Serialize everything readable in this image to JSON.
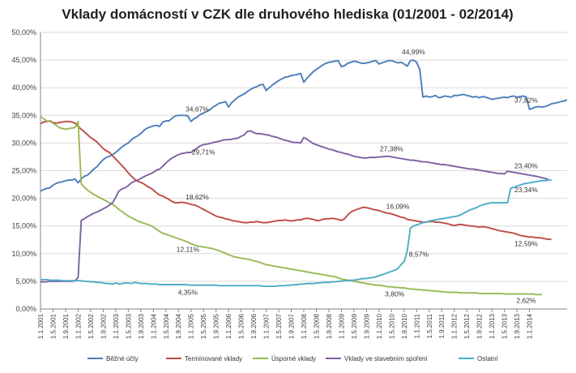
{
  "chart_data": {
    "type": "line",
    "title": "Vklady domácností v CZK dle druhového hlediska (01/2001 - 02/2014)",
    "ylim": [
      0,
      50
    ],
    "ytick_labels": [
      "0,00%",
      "5,00%",
      "10,00%",
      "15,00%",
      "20,00%",
      "25,00%",
      "30,00%",
      "35,00%",
      "40,00%",
      "45,00%",
      "50,00%"
    ],
    "x_tick_labels": [
      "1.1.2001",
      "1.5.2001",
      "1.9.2001",
      "1.1.2002",
      "1.5.2002",
      "1.9.2002",
      "1.1.2003",
      "1.5.2003",
      "1.9.2003",
      "1.1.2004",
      "1.5.2004",
      "1.9.2004",
      "1.1.2005",
      "1.5.2005",
      "1.9.2005",
      "1.1.2006",
      "1.5.2006",
      "1.9.2006",
      "1.1.2007",
      "1.5.2007",
      "1.9.2007",
      "1.1.2008",
      "1.5.2008",
      "1.9.2008",
      "1.1.2009",
      "1.5.2009",
      "1.9.2009",
      "1.1.2010",
      "1.5.2010",
      "1.9.2010",
      "1.1.2011",
      "1.5.2011",
      "1.9.2011",
      "1.1.2012",
      "1.5.2012",
      "1.9.2012",
      "1.1.2013",
      "1.5.2013",
      "1.9.2013",
      "1.1.2014"
    ],
    "grid": true,
    "legend_position": "bottom",
    "series": [
      {
        "name": "Běžné účty",
        "color": "#4a7ebb",
        "values": [
          21.3,
          21.6,
          21.8,
          21.9,
          22.4,
          22.7,
          22.9,
          23.0,
          23.2,
          23.3,
          23.3,
          23.5,
          22.8,
          23.5,
          24.0,
          24.2,
          24.7,
          25.3,
          25.7,
          26.4,
          27.0,
          27.4,
          27.6,
          27.9,
          28.3,
          28.8,
          29.3,
          29.7,
          30.0,
          30.6,
          31.0,
          31.3,
          31.7,
          32.3,
          32.7,
          32.9,
          33.1,
          33.2,
          33.0,
          33.8,
          34.0,
          34.0,
          34.5,
          34.9,
          35.0,
          35.0,
          35.0,
          34.9,
          33.9,
          34.4,
          34.7,
          35.2,
          35.4,
          35.7,
          36.0,
          36.5,
          36.8,
          37.2,
          37.3,
          37.5,
          36.5,
          37.3,
          37.8,
          38.3,
          38.6,
          38.9,
          39.3,
          39.7,
          40.0,
          40.2,
          40.5,
          40.6,
          39.5,
          40.0,
          40.5,
          40.9,
          41.3,
          41.6,
          41.9,
          42.0,
          42.2,
          42.3,
          42.4,
          42.6,
          41.0,
          41.7,
          42.3,
          42.9,
          43.3,
          43.7,
          44.1,
          44.4,
          44.6,
          44.7,
          44.8,
          44.9,
          43.8,
          44.0,
          44.4,
          44.6,
          44.8,
          44.7,
          44.5,
          44.4,
          44.5,
          44.6,
          44.8,
          44.9,
          44.3,
          44.5,
          44.7,
          44.9,
          44.9,
          44.7,
          44.5,
          44.6,
          44.3,
          43.9,
          44.9,
          44.99,
          44.6,
          43.3,
          38.3,
          38.5,
          38.3,
          38.4,
          38.6,
          38.2,
          38.3,
          38.5,
          38.4,
          38.3,
          38.6,
          38.6,
          38.7,
          38.8,
          38.6,
          38.5,
          38.3,
          38.4,
          38.2,
          38.4,
          38.3,
          38.1,
          37.9,
          38.0,
          38.1,
          38.2,
          38.3,
          38.2,
          38.4,
          38.5,
          38.3,
          38.4,
          38.5,
          38.3,
          36.1,
          36.3,
          36.5,
          36.6,
          36.5,
          36.6,
          36.8,
          37.1,
          37.2,
          37.3,
          37.5,
          37.6,
          37.82
        ]
      },
      {
        "name": "Termínované vklady",
        "color": "#be4b48",
        "values": [
          33.5,
          33.8,
          33.9,
          34.0,
          33.7,
          33.6,
          33.7,
          33.8,
          33.9,
          33.9,
          33.8,
          33.6,
          33.0,
          32.5,
          32.0,
          31.5,
          31.0,
          30.6,
          30.2,
          29.6,
          29.0,
          28.6,
          28.3,
          27.7,
          27.1,
          26.5,
          25.9,
          25.3,
          24.6,
          24.0,
          23.5,
          23.1,
          22.9,
          22.6,
          22.2,
          21.9,
          21.5,
          21.0,
          20.6,
          20.4,
          20.1,
          19.8,
          19.4,
          19.2,
          19.2,
          19.3,
          19.2,
          19.1,
          18.9,
          18.8,
          18.6,
          18.3,
          18.0,
          17.7,
          17.4,
          17.1,
          16.8,
          16.6,
          16.5,
          16.3,
          16.2,
          16.0,
          15.9,
          15.8,
          15.7,
          15.6,
          15.6,
          15.7,
          15.7,
          15.8,
          15.7,
          15.6,
          15.6,
          15.7,
          15.8,
          15.9,
          16.0,
          16.0,
          16.1,
          16.0,
          15.9,
          16.0,
          16.1,
          16.1,
          16.3,
          16.4,
          16.3,
          16.2,
          16.0,
          16.0,
          16.2,
          16.3,
          16.3,
          16.4,
          16.3,
          16.2,
          16.0,
          16.3,
          17.0,
          17.5,
          17.8,
          18.0,
          18.2,
          18.4,
          18.3,
          18.2,
          18.0,
          17.9,
          17.8,
          17.6,
          17.4,
          17.3,
          17.2,
          17.0,
          16.8,
          16.6,
          16.5,
          16.2,
          16.09,
          16.0,
          15.9,
          15.8,
          15.7,
          15.7,
          15.8,
          15.8,
          15.7,
          15.7,
          15.6,
          15.5,
          15.4,
          15.2,
          15.1,
          15.2,
          15.3,
          15.2,
          15.1,
          15.0,
          15.0,
          14.9,
          14.8,
          14.9,
          14.8,
          14.7,
          14.5,
          14.4,
          14.2,
          14.1,
          14.0,
          13.9,
          13.8,
          13.7,
          13.5,
          13.3,
          13.2,
          13.1,
          13.0,
          13.0,
          12.9,
          12.9,
          12.8,
          12.7,
          12.6,
          12.59
        ]
      },
      {
        "name": "Úsporné vklady",
        "color": "#98b954",
        "values": [
          34.8,
          34.4,
          34.0,
          33.9,
          33.6,
          33.2,
          32.8,
          32.6,
          32.5,
          32.6,
          32.7,
          32.8,
          33.9,
          22.6,
          22.0,
          21.5,
          21.1,
          20.7,
          20.4,
          20.1,
          19.8,
          19.5,
          19.2,
          18.9,
          18.5,
          18.0,
          17.6,
          17.2,
          16.8,
          16.5,
          16.2,
          15.9,
          15.7,
          15.5,
          15.3,
          15.1,
          14.8,
          14.4,
          14.0,
          13.7,
          13.5,
          13.3,
          13.1,
          12.9,
          12.7,
          12.5,
          12.3,
          12.1,
          11.8,
          11.6,
          11.4,
          11.3,
          11.2,
          11.1,
          11.0,
          10.9,
          10.7,
          10.5,
          10.3,
          10.1,
          9.8,
          9.6,
          9.4,
          9.3,
          9.2,
          9.1,
          9.0,
          8.9,
          8.7,
          8.6,
          8.4,
          8.2,
          8.0,
          7.9,
          7.8,
          7.7,
          7.6,
          7.5,
          7.4,
          7.3,
          7.2,
          7.1,
          7.0,
          6.9,
          6.8,
          6.7,
          6.6,
          6.5,
          6.4,
          6.3,
          6.2,
          6.1,
          6.0,
          5.9,
          5.8,
          5.6,
          5.4,
          5.3,
          5.2,
          5.1,
          5.0,
          4.9,
          4.8,
          4.7,
          4.6,
          4.5,
          4.4,
          4.3,
          4.3,
          4.2,
          4.1,
          4.0,
          4.0,
          3.9,
          3.9,
          3.8,
          3.8,
          3.7,
          3.6,
          3.6,
          3.5,
          3.5,
          3.4,
          3.4,
          3.3,
          3.3,
          3.2,
          3.2,
          3.1,
          3.1,
          3.0,
          3.0,
          3.0,
          3.0,
          2.9,
          2.9,
          2.9,
          2.9,
          2.9,
          2.9,
          2.8,
          2.8,
          2.8,
          2.8,
          2.8,
          2.8,
          2.8,
          2.8,
          2.7,
          2.7,
          2.7,
          2.7,
          2.7,
          2.7,
          2.7,
          2.7,
          2.7,
          2.7,
          2.6,
          2.6,
          2.62
        ]
      },
      {
        "name": "Vklady ve stavebním spoření",
        "color": "#7d60a0",
        "values": [
          4.9,
          4.9,
          4.9,
          5.0,
          5.0,
          5.0,
          5.0,
          5.0,
          5.0,
          5.0,
          5.0,
          5.1,
          5.7,
          16.0,
          16.3,
          16.7,
          17.0,
          17.3,
          17.5,
          17.8,
          18.1,
          18.4,
          18.8,
          19.2,
          20.2,
          21.3,
          21.7,
          21.9,
          22.3,
          22.8,
          23.1,
          23.3,
          23.6,
          23.9,
          24.2,
          24.4,
          24.7,
          25.1,
          25.3,
          25.8,
          26.4,
          26.9,
          27.3,
          27.6,
          27.9,
          28.1,
          28.2,
          28.3,
          28.3,
          28.7,
          29.1,
          29.5,
          29.71,
          29.8,
          29.9,
          30.1,
          30.2,
          30.3,
          30.5,
          30.6,
          30.6,
          30.7,
          30.8,
          30.9,
          31.2,
          31.5,
          32.1,
          32.2,
          31.9,
          31.7,
          31.7,
          31.6,
          31.5,
          31.4,
          31.2,
          31.1,
          30.9,
          30.7,
          30.5,
          30.4,
          30.2,
          30.1,
          30.1,
          30.0,
          31.0,
          30.7,
          30.3,
          29.9,
          29.7,
          29.5,
          29.3,
          29.1,
          28.9,
          28.8,
          28.6,
          28.4,
          28.3,
          28.1,
          28.0,
          27.8,
          27.6,
          27.5,
          27.4,
          27.3,
          27.3,
          27.4,
          27.4,
          27.4,
          27.5,
          27.5,
          27.6,
          27.6,
          27.5,
          27.4,
          27.3,
          27.2,
          27.1,
          27.0,
          26.9,
          26.9,
          26.8,
          26.7,
          26.6,
          26.6,
          26.5,
          26.4,
          26.3,
          26.2,
          26.1,
          26.1,
          26.0,
          25.9,
          25.8,
          25.7,
          25.6,
          25.5,
          25.4,
          25.3,
          25.3,
          25.2,
          25.1,
          25.0,
          24.9,
          24.8,
          24.7,
          24.6,
          24.5,
          24.5,
          24.4,
          24.9,
          24.8,
          24.7,
          24.6,
          24.5,
          24.4,
          24.3,
          24.2,
          24.1,
          24.0,
          23.9,
          23.7,
          23.6,
          23.4
        ]
      },
      {
        "name": "Ostatní",
        "color": "#4bacc6",
        "values": [
          5.3,
          5.3,
          5.3,
          5.2,
          5.2,
          5.2,
          5.2,
          5.1,
          5.1,
          5.1,
          5.1,
          5.1,
          5.1,
          5.1,
          5.0,
          5.0,
          4.9,
          4.9,
          4.8,
          4.8,
          4.7,
          4.6,
          4.6,
          4.5,
          4.7,
          4.5,
          4.6,
          4.7,
          4.7,
          4.6,
          4.8,
          4.7,
          4.6,
          4.6,
          4.6,
          4.5,
          4.5,
          4.5,
          4.4,
          4.4,
          4.4,
          4.4,
          4.4,
          4.4,
          4.4,
          4.4,
          4.4,
          4.35,
          4.3,
          4.3,
          4.3,
          4.3,
          4.3,
          4.3,
          4.3,
          4.3,
          4.3,
          4.2,
          4.2,
          4.2,
          4.2,
          4.2,
          4.2,
          4.2,
          4.2,
          4.2,
          4.2,
          4.2,
          4.2,
          4.2,
          4.2,
          4.1,
          4.1,
          4.1,
          4.1,
          4.1,
          4.2,
          4.2,
          4.2,
          4.3,
          4.3,
          4.4,
          4.4,
          4.5,
          4.5,
          4.6,
          4.6,
          4.6,
          4.7,
          4.7,
          4.8,
          4.8,
          4.8,
          4.9,
          4.9,
          5.0,
          5.0,
          5.1,
          5.1,
          5.2,
          5.2,
          5.3,
          5.4,
          5.5,
          5.5,
          5.6,
          5.7,
          5.8,
          6.0,
          6.2,
          6.4,
          6.6,
          6.8,
          7.0,
          7.3,
          8.0,
          8.57,
          10.5,
          14.6,
          15.0,
          15.2,
          15.4,
          15.6,
          15.7,
          15.9,
          16.0,
          16.1,
          16.2,
          16.3,
          16.4,
          16.5,
          16.6,
          16.7,
          16.8,
          17.0,
          17.3,
          17.6,
          17.9,
          18.1,
          18.3,
          18.6,
          18.8,
          19.0,
          19.1,
          19.2,
          19.2,
          19.2,
          19.2,
          19.2,
          19.2,
          21.8,
          22.0,
          22.2,
          22.4,
          22.6,
          22.7,
          22.8,
          22.9,
          23.0,
          23.1,
          23.2,
          23.2,
          23.3,
          23.34
        ]
      }
    ],
    "annotations": [
      {
        "text": "44,99%",
        "series": 0,
        "index": 119
      },
      {
        "text": "34,67%",
        "series": 0,
        "index": 50
      },
      {
        "text": "37,82%",
        "series": 0,
        "index": 157
      },
      {
        "text": "29,71%",
        "series": 3,
        "index": 52
      },
      {
        "text": "27,38%",
        "series": 3,
        "index": 112
      },
      {
        "text": "23,40%",
        "series": 3,
        "index": 157
      },
      {
        "text": "23,34%",
        "series": 4,
        "index": 157
      },
      {
        "text": "18,62%",
        "series": 1,
        "index": 50
      },
      {
        "text": "16,09%",
        "series": 1,
        "index": 114
      },
      {
        "text": "12,59%",
        "series": 1,
        "index": 157
      },
      {
        "text": "12,11%",
        "series": 2,
        "index": 47
      },
      {
        "text": "8,57%",
        "series": 4,
        "index": 116
      },
      {
        "text": "4,35%",
        "series": 4,
        "index": 47
      },
      {
        "text": "3,80%",
        "series": 2,
        "index": 113
      },
      {
        "text": "2,62%",
        "series": 2,
        "index": 157
      }
    ]
  }
}
